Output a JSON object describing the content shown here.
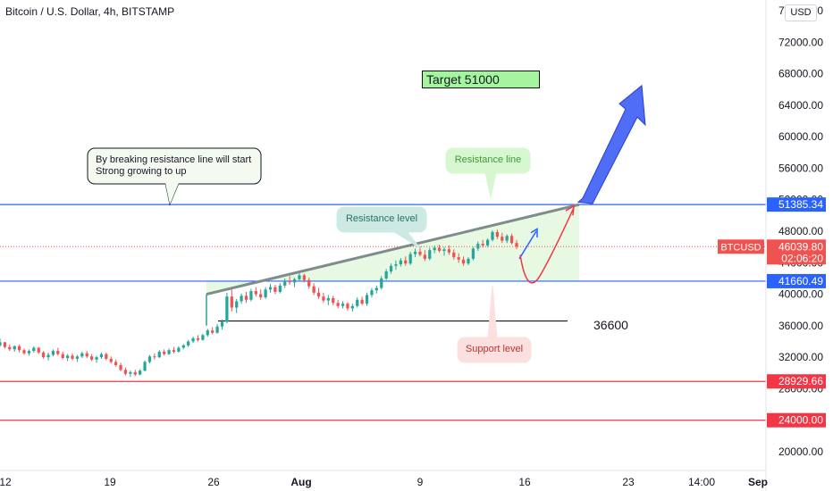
{
  "header": {
    "title": "Bitcoin / U.S. Dollar, 4h, BITSTAMP",
    "currency_button": "USD"
  },
  "colors": {
    "up_candle": "#26a69a",
    "down_candle": "#ef5350",
    "resistance_blue": "#2962ff",
    "support_red": "#f23645",
    "grey_trendline": "#7f8c8d",
    "projection_arrow": "#4f6df5",
    "range_fill": "#d8f5d0"
  },
  "annotations": {
    "target_label": "Target 51000",
    "breakout_note_line1": "By breaking resistance line will start",
    "breakout_note_line2": "Strong growing to up",
    "resistance_line_label": "Resistance line",
    "resistance_level_label": "Resistance level",
    "support_level_label": "Support level",
    "level_36600_label": "36600",
    "symbol_label": "BTCUSD",
    "countdown": "02:06:20"
  },
  "chart_data": {
    "type": "candlestick",
    "title": "Bitcoin / U.S. Dollar, 4h, BITSTAMP",
    "currency": "USD",
    "ylim": [
      18000,
      76000
    ],
    "y_ticks": [
      20000,
      24000,
      28000,
      32000,
      36000,
      40000,
      44000,
      48000,
      52000,
      56000,
      60000,
      64000,
      68000,
      72000,
      76000
    ],
    "y_tick_labels": [
      "20000.00",
      "24000.00",
      "28000.00",
      "32000.00",
      "36000.00",
      "40000.00",
      "44000.00",
      "48000.00",
      "52000.00",
      "56000.00",
      "60000.00",
      "64000.00",
      "68000.00",
      "72000.00",
      "76000.00"
    ],
    "x_tick_labels": [
      "12",
      "19",
      "26",
      "Aug",
      "9",
      "16",
      "23",
      "14:00",
      "Sep"
    ],
    "price_levels": [
      {
        "label": "51385.34",
        "value": 51385.34,
        "color": "#2962ff"
      },
      {
        "label": "41660.49",
        "value": 41660.49,
        "color": "#2962ff"
      },
      {
        "label": "28929.66",
        "value": 28929.66,
        "color": "#f23645"
      },
      {
        "label": "24000.00",
        "value": 24000.0,
        "color": "#f23645"
      }
    ],
    "current_price": {
      "label": "46039.80",
      "value": 46039.8
    },
    "support_line_value": 36600,
    "candles": [
      [
        33500,
        34400,
        33300,
        33900
      ],
      [
        33900,
        33950,
        33100,
        33300
      ],
      [
        33300,
        33600,
        32800,
        33000
      ],
      [
        33000,
        33500,
        32700,
        33400
      ],
      [
        33400,
        33600,
        32600,
        32900
      ],
      [
        32900,
        33100,
        32300,
        32500
      ],
      [
        32500,
        33000,
        32200,
        32800
      ],
      [
        32800,
        33400,
        32600,
        33200
      ],
      [
        33200,
        33300,
        32400,
        32600
      ],
      [
        32600,
        32800,
        31800,
        32000
      ],
      [
        32000,
        32600,
        31600,
        32300
      ],
      [
        32300,
        33000,
        32100,
        32800
      ],
      [
        32800,
        33200,
        32200,
        32400
      ],
      [
        32400,
        32700,
        31700,
        31900
      ],
      [
        31900,
        32400,
        31500,
        32200
      ],
      [
        32200,
        32500,
        31600,
        31800
      ],
      [
        31800,
        32300,
        31400,
        32100
      ],
      [
        32100,
        32700,
        31900,
        32500
      ],
      [
        32500,
        32800,
        31900,
        32100
      ],
      [
        32100,
        32400,
        31500,
        31700
      ],
      [
        31700,
        32200,
        31300,
        32000
      ],
      [
        32000,
        32600,
        31800,
        32400
      ],
      [
        32400,
        32600,
        31600,
        31800
      ],
      [
        31800,
        32100,
        31200,
        31400
      ],
      [
        31400,
        31700,
        30800,
        31000
      ],
      [
        31000,
        31300,
        30200,
        30400
      ],
      [
        30400,
        30700,
        29700,
        29900
      ],
      [
        29900,
        30300,
        29500,
        30100
      ],
      [
        30100,
        30400,
        29600,
        29800
      ],
      [
        29800,
        30500,
        29700,
        30300
      ],
      [
        30300,
        31600,
        30200,
        31400
      ],
      [
        31400,
        32300,
        31200,
        32100
      ],
      [
        32100,
        32500,
        31700,
        32000
      ],
      [
        32000,
        32900,
        31900,
        32700
      ],
      [
        32700,
        33000,
        32200,
        32400
      ],
      [
        32400,
        33100,
        32300,
        32900
      ],
      [
        32900,
        33300,
        32500,
        32700
      ],
      [
        32700,
        33400,
        32600,
        33200
      ],
      [
        33200,
        33700,
        33000,
        33500
      ],
      [
        33500,
        34200,
        33300,
        34000
      ],
      [
        34000,
        34600,
        33800,
        34400
      ],
      [
        34400,
        34800,
        34000,
        34200
      ],
      [
        34200,
        35000,
        34100,
        34800
      ],
      [
        34800,
        35600,
        34600,
        35400
      ],
      [
        35400,
        35800,
        34900,
        35100
      ],
      [
        35100,
        36200,
        35000,
        35900
      ],
      [
        35900,
        36800,
        35500,
        36500
      ],
      [
        36500,
        40200,
        36300,
        39700
      ],
      [
        39700,
        40600,
        37800,
        38300
      ],
      [
        38300,
        39400,
        37600,
        39100
      ],
      [
        39100,
        40100,
        38800,
        39800
      ],
      [
        39800,
        40300,
        38900,
        39300
      ],
      [
        39300,
        40700,
        39100,
        40400
      ],
      [
        40400,
        40900,
        39700,
        40000
      ],
      [
        40000,
        40600,
        39300,
        39600
      ],
      [
        39600,
        40900,
        39400,
        40600
      ],
      [
        40600,
        41300,
        40200,
        40900
      ],
      [
        40900,
        41200,
        40000,
        40300
      ],
      [
        40300,
        41400,
        40100,
        41100
      ],
      [
        41100,
        42000,
        40800,
        41700
      ],
      [
        41700,
        42300,
        41200,
        41500
      ],
      [
        41500,
        42100,
        40900,
        41900
      ],
      [
        41900,
        42700,
        41600,
        42400
      ],
      [
        42400,
        42600,
        41500,
        41800
      ],
      [
        41800,
        42100,
        40700,
        41000
      ],
      [
        41000,
        41400,
        39900,
        40200
      ],
      [
        40200,
        40800,
        39400,
        39700
      ],
      [
        39700,
        40200,
        38900,
        39200
      ],
      [
        39200,
        39900,
        38600,
        39500
      ],
      [
        39500,
        39800,
        38600,
        38900
      ],
      [
        38900,
        39300,
        38200,
        38500
      ],
      [
        38500,
        39100,
        38200,
        38800
      ],
      [
        38800,
        39000,
        37900,
        38200
      ],
      [
        38200,
        38800,
        37800,
        38500
      ],
      [
        38500,
        39600,
        38300,
        39300
      ],
      [
        39300,
        39700,
        38600,
        38800
      ],
      [
        38800,
        40200,
        38500,
        39900
      ],
      [
        39900,
        40800,
        39600,
        40500
      ],
      [
        40500,
        41100,
        40100,
        40800
      ],
      [
        40800,
        42300,
        40600,
        42000
      ],
      [
        42000,
        43200,
        41800,
        42900
      ],
      [
        42900,
        43900,
        42600,
        43600
      ],
      [
        43600,
        44300,
        43100,
        43800
      ],
      [
        43800,
        44600,
        43500,
        44300
      ],
      [
        44300,
        44800,
        43600,
        43900
      ],
      [
        43900,
        45400,
        43700,
        45100
      ],
      [
        45100,
        45800,
        44700,
        45400
      ],
      [
        45400,
        46100,
        44800,
        45000
      ],
      [
        45000,
        45600,
        44200,
        44500
      ],
      [
        44500,
        45900,
        44300,
        45600
      ],
      [
        45600,
        46200,
        45200,
        45900
      ],
      [
        45900,
        46300,
        45300,
        45500
      ],
      [
        45500,
        46000,
        44900,
        45700
      ],
      [
        45700,
        46200,
        45000,
        45300
      ],
      [
        45300,
        45700,
        44400,
        44700
      ],
      [
        44700,
        45200,
        44000,
        44400
      ],
      [
        44400,
        44800,
        43600,
        43900
      ],
      [
        43900,
        44700,
        43700,
        44500
      ],
      [
        44500,
        46000,
        44300,
        45800
      ],
      [
        45800,
        46700,
        45500,
        46400
      ],
      [
        46400,
        46900,
        45900,
        46200
      ],
      [
        46200,
        47100,
        46000,
        46900
      ],
      [
        46900,
        48100,
        46700,
        47900
      ],
      [
        47900,
        48200,
        47000,
        47300
      ],
      [
        47300,
        47800,
        46500,
        46800
      ],
      [
        46800,
        47600,
        46500,
        47400
      ],
      [
        47400,
        47700,
        46300,
        46500
      ],
      [
        46500,
        46900,
        45700,
        46039.8
      ]
    ]
  }
}
